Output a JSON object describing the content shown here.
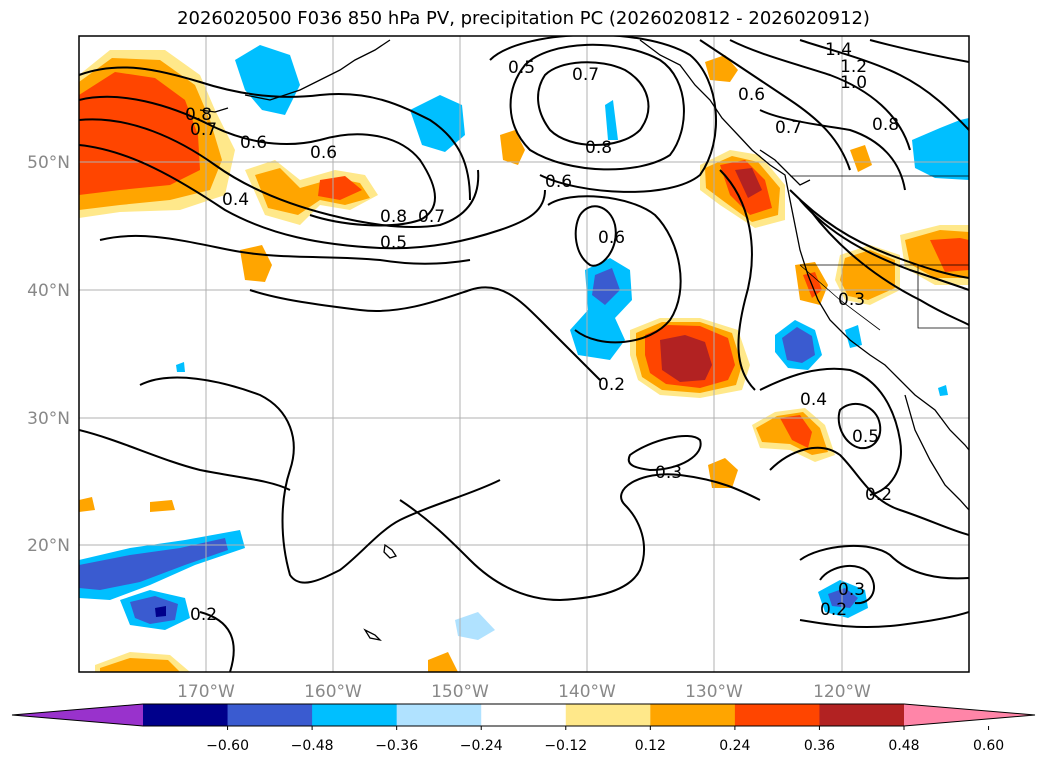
{
  "title": "2026020500 F036 850 hPa PV, precipitation PC (2026020812 - 2026020912)",
  "lon_labels": [
    "170°W",
    "160°W",
    "150°W",
    "140°W",
    "130°W",
    "120°W"
  ],
  "lat_labels": [
    "50°N",
    "40°N",
    "30°N",
    "20°N"
  ],
  "colorbar": {
    "ticks": [
      "−0.60",
      "−0.48",
      "−0.36",
      "−0.24",
      "−0.12",
      "0.12",
      "0.24",
      "0.36",
      "0.48",
      "0.60"
    ],
    "colors": [
      "#9932cc",
      "#00008b",
      "#3a5bd0",
      "#00bfff",
      "#b0e2ff",
      "#ffffff",
      "#ffe88a",
      "#ffa500",
      "#ff4500",
      "#b22222",
      "#ff85a8"
    ]
  },
  "contour_labels": [
    "0.2",
    "0.3",
    "0.4",
    "0.5",
    "0.6",
    "0.7",
    "0.8",
    "1.0",
    "1.2",
    "1.4"
  ]
}
